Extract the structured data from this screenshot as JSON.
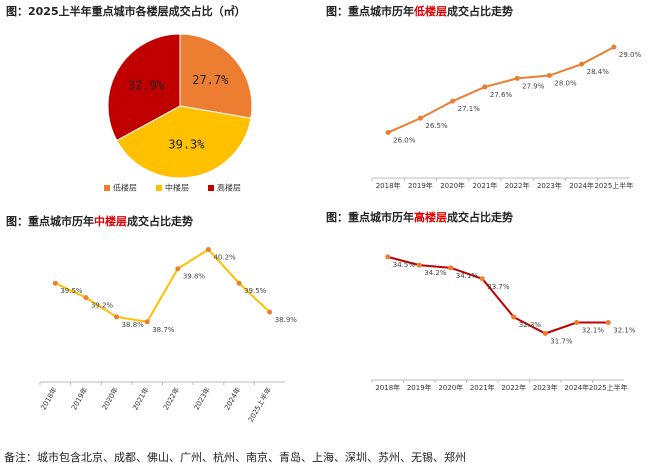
{
  "chart_data": [
    {
      "type": "pie",
      "title": [
        "图：2025上半年重点城市各楼层成交占比（㎡）"
      ],
      "categories": [
        "低楼层",
        "中楼层",
        "高楼层"
      ],
      "values": [
        27.7,
        39.3,
        32.9
      ],
      "value_labels": [
        "27.7%",
        "39.3%",
        "32.9%"
      ],
      "colors": [
        "#ED7D31",
        "#FFC000",
        "#C00000"
      ]
    },
    {
      "type": "line",
      "title": [
        "图：重点城市历年",
        "低楼层",
        "成交占比走势"
      ],
      "categories": [
        "2018年",
        "2019年",
        "2020年",
        "2021年",
        "2022年",
        "2023年",
        "2024年",
        "2025上半年"
      ],
      "values": [
        26.0,
        26.5,
        27.1,
        27.6,
        27.9,
        28.0,
        28.4,
        29.0
      ],
      "value_labels": [
        "26.0%",
        "26.5%",
        "27.1%",
        "27.6%",
        "27.9%",
        "28.0%",
        "28.4%",
        "29.0%"
      ],
      "color": "#ED7D31",
      "ylim": [
        24.4,
        29.6
      ]
    },
    {
      "type": "line",
      "title": [
        "图：重点城市历年",
        "中楼层",
        "成交占比走势"
      ],
      "categories": [
        "2018年",
        "2019年",
        "2020年",
        "2021年",
        "2022年",
        "2023年",
        "2024年",
        "2025上半年"
      ],
      "values": [
        39.5,
        39.2,
        38.8,
        38.7,
        39.8,
        40.2,
        39.5,
        38.9
      ],
      "value_labels": [
        "39.5%",
        "39.2%",
        "38.8%",
        "38.7%",
        "39.8%",
        "40.2%",
        "39.5%",
        "38.9%"
      ],
      "color": "#FFC000",
      "ylim": [
        37.45,
        40.5
      ]
    },
    {
      "type": "line",
      "title": [
        "图：重点城市历年",
        "高楼层",
        "成交占比走势"
      ],
      "categories": [
        "2018年",
        "2019年",
        "2020年",
        "2021年",
        "2022年",
        "2023年",
        "2024年",
        "2025上半年"
      ],
      "values": [
        34.5,
        34.2,
        34.1,
        33.7,
        32.3,
        31.7,
        32.1,
        32.1
      ],
      "value_labels": [
        "34.5%",
        "34.2%",
        "34.1%",
        "33.7%",
        "32.3%",
        "31.7%",
        "32.1%",
        "32.1%"
      ],
      "color": "#C00000",
      "ylim": [
        30.0,
        35.3
      ]
    }
  ],
  "note": "备注：城市包含北京、成都、佛山、广州、杭州、南京、青岛、上海、深圳、苏州、无锡、郑州"
}
